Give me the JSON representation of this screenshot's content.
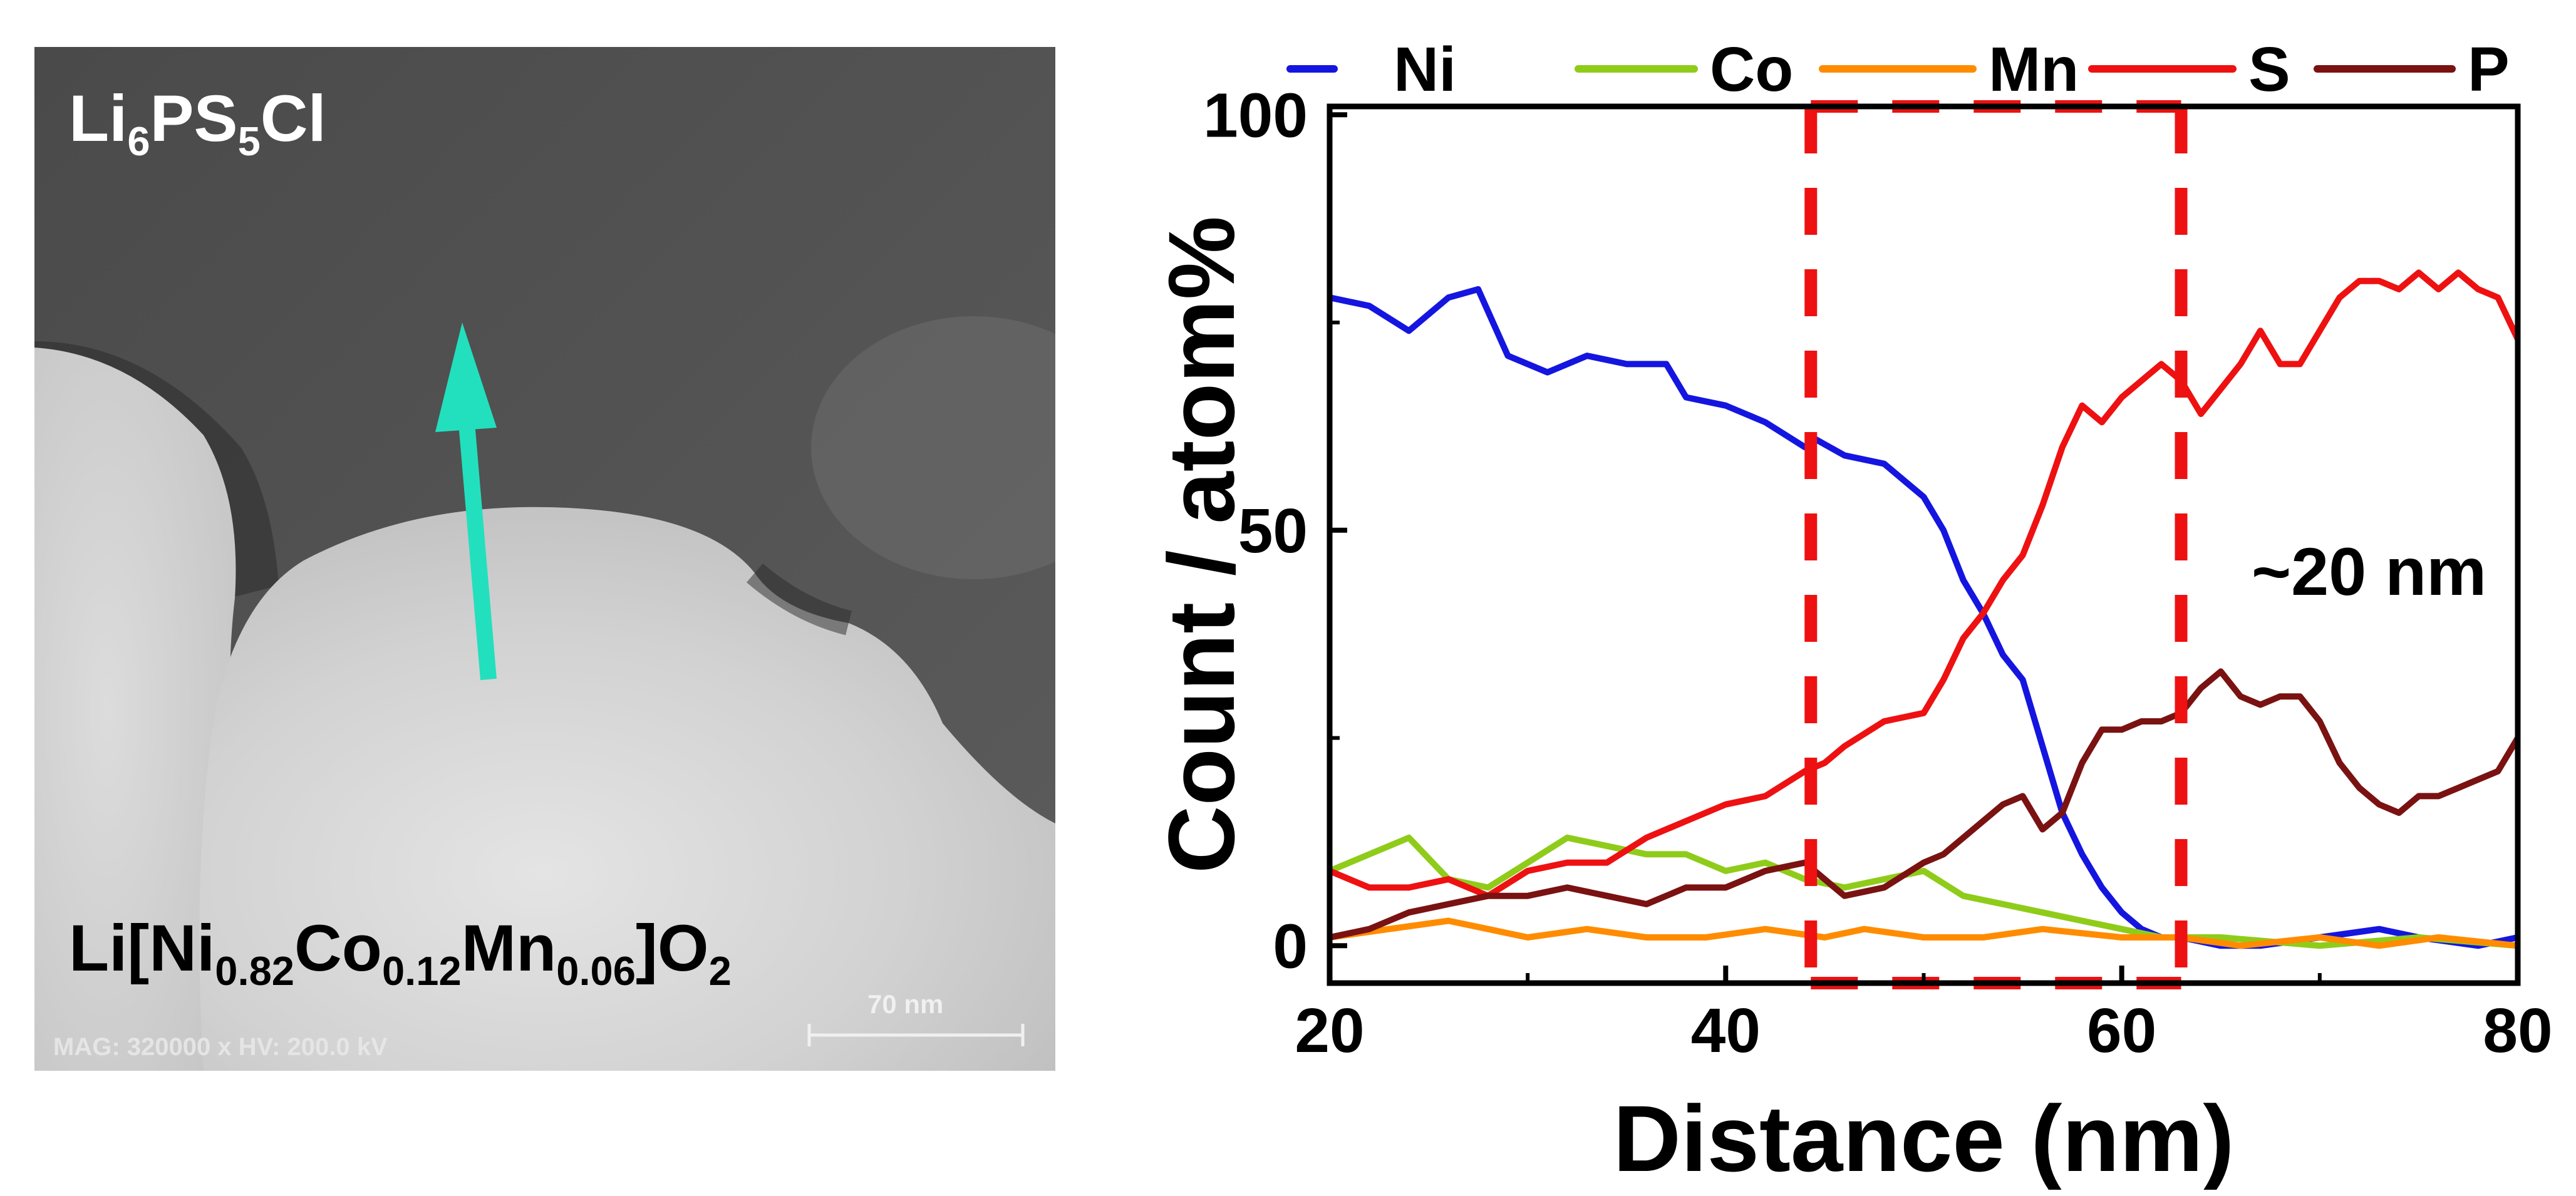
{
  "micrograph": {
    "top_label": {
      "base1": "Li",
      "sub1": "6",
      "base2": "PS",
      "sub2": "5",
      "base3": "Cl"
    },
    "bottom_label": {
      "p1": "Li[Ni",
      "s1": "0.82",
      "p2": "Co",
      "s2": "0.12",
      "p3": "Mn",
      "s3": "0.06",
      "p4": "]O",
      "s4": "2"
    },
    "info_text": "MAG: 320000 x  HV: 200.0 kV",
    "scale_bar_label": "70 nm",
    "arrow_color": "#22e0bd"
  },
  "chart_data": {
    "type": "line",
    "xlabel": "Distance (nm)",
    "ylabel": "Count / atom%",
    "xlim": [
      20,
      80
    ],
    "ylim": [
      -4.5,
      101
    ],
    "xticks": [
      20,
      40,
      60,
      80
    ],
    "yticks": [
      0,
      50,
      100
    ],
    "annotation": "~20 nm",
    "boundary_x": [
      44.3,
      63
    ],
    "legend_position": "top",
    "series": [
      {
        "name": "Ni",
        "color": "#1515e0",
        "x": [
          20,
          22,
          24,
          26,
          27.5,
          29,
          30,
          31,
          33,
          35,
          37,
          38,
          40,
          42,
          44,
          44.5,
          46,
          48,
          50,
          51,
          52,
          53,
          54,
          55,
          56,
          57,
          58,
          59,
          60,
          61,
          62,
          63,
          65,
          67,
          70,
          73,
          75,
          78,
          80
        ],
        "y": [
          78,
          77,
          74,
          78,
          79,
          71,
          70,
          69,
          71,
          70,
          70,
          66,
          65,
          63,
          60,
          61,
          59,
          58,
          54,
          50,
          44,
          40,
          35,
          32,
          24,
          16,
          11,
          7,
          4,
          2,
          1,
          1,
          0,
          0,
          1,
          2,
          1,
          0,
          1
        ]
      },
      {
        "name": "Co",
        "color": "#8fcc1a",
        "x": [
          20,
          22,
          24,
          26,
          28,
          30,
          32,
          34,
          36,
          38,
          40,
          42,
          44,
          46,
          48,
          50,
          52,
          54,
          56,
          58,
          60,
          62,
          65,
          70,
          75,
          80
        ],
        "y": [
          9,
          11,
          13,
          8,
          7,
          10,
          13,
          12,
          11,
          11,
          9,
          10,
          8,
          7,
          8,
          9,
          6,
          5,
          4,
          3,
          2,
          1,
          1,
          0,
          1,
          0
        ]
      },
      {
        "name": "Mn",
        "color": "#ff8c00",
        "x": [
          20,
          23,
          26,
          28,
          30,
          33,
          36,
          39,
          42,
          45,
          47,
          50,
          53,
          56,
          60,
          63,
          66,
          70,
          73,
          76,
          80
        ],
        "y": [
          1,
          2,
          3,
          2,
          1,
          2,
          1,
          1,
          2,
          1,
          2,
          1,
          1,
          2,
          1,
          1,
          0,
          1,
          0,
          1,
          0
        ]
      },
      {
        "name": "S",
        "color": "#ee1111",
        "x": [
          20,
          22,
          24,
          26,
          28,
          30,
          32,
          34,
          36,
          38,
          40,
          42,
          44,
          45,
          46,
          48,
          50,
          51,
          52,
          53,
          54,
          55,
          56,
          57,
          58,
          59,
          60,
          61,
          62,
          63,
          64,
          65,
          66,
          67,
          68,
          69,
          70,
          71,
          72,
          73,
          74,
          75,
          76,
          77,
          78,
          79,
          80
        ],
        "y": [
          9,
          7,
          7,
          8,
          6,
          9,
          10,
          10,
          13,
          15,
          17,
          18,
          21,
          22,
          24,
          27,
          28,
          32,
          37,
          40,
          44,
          47,
          53,
          60,
          65,
          63,
          66,
          68,
          70,
          68,
          64,
          67,
          70,
          74,
          70,
          70,
          74,
          78,
          80,
          80,
          79,
          81,
          79,
          81,
          79,
          78,
          73
        ]
      },
      {
        "name": "P",
        "color": "#7a1212",
        "x": [
          20,
          22,
          24,
          26,
          28,
          30,
          32,
          34,
          36,
          38,
          40,
          42,
          44,
          46,
          48,
          50,
          51,
          52,
          53,
          54,
          55,
          56,
          57,
          58,
          59,
          60,
          61,
          62,
          63,
          64,
          65,
          66,
          67,
          68,
          69,
          70,
          71,
          72,
          73,
          74,
          75,
          76,
          77,
          78,
          79,
          80
        ],
        "y": [
          1,
          2,
          4,
          5,
          6,
          6,
          7,
          6,
          5,
          7,
          7,
          9,
          10,
          6,
          7,
          10,
          11,
          13,
          15,
          17,
          18,
          14,
          16,
          22,
          26,
          26,
          27,
          27,
          28,
          31,
          33,
          30,
          29,
          30,
          30,
          27,
          22,
          19,
          17,
          16,
          18,
          18,
          19,
          20,
          21,
          25
        ]
      }
    ]
  }
}
